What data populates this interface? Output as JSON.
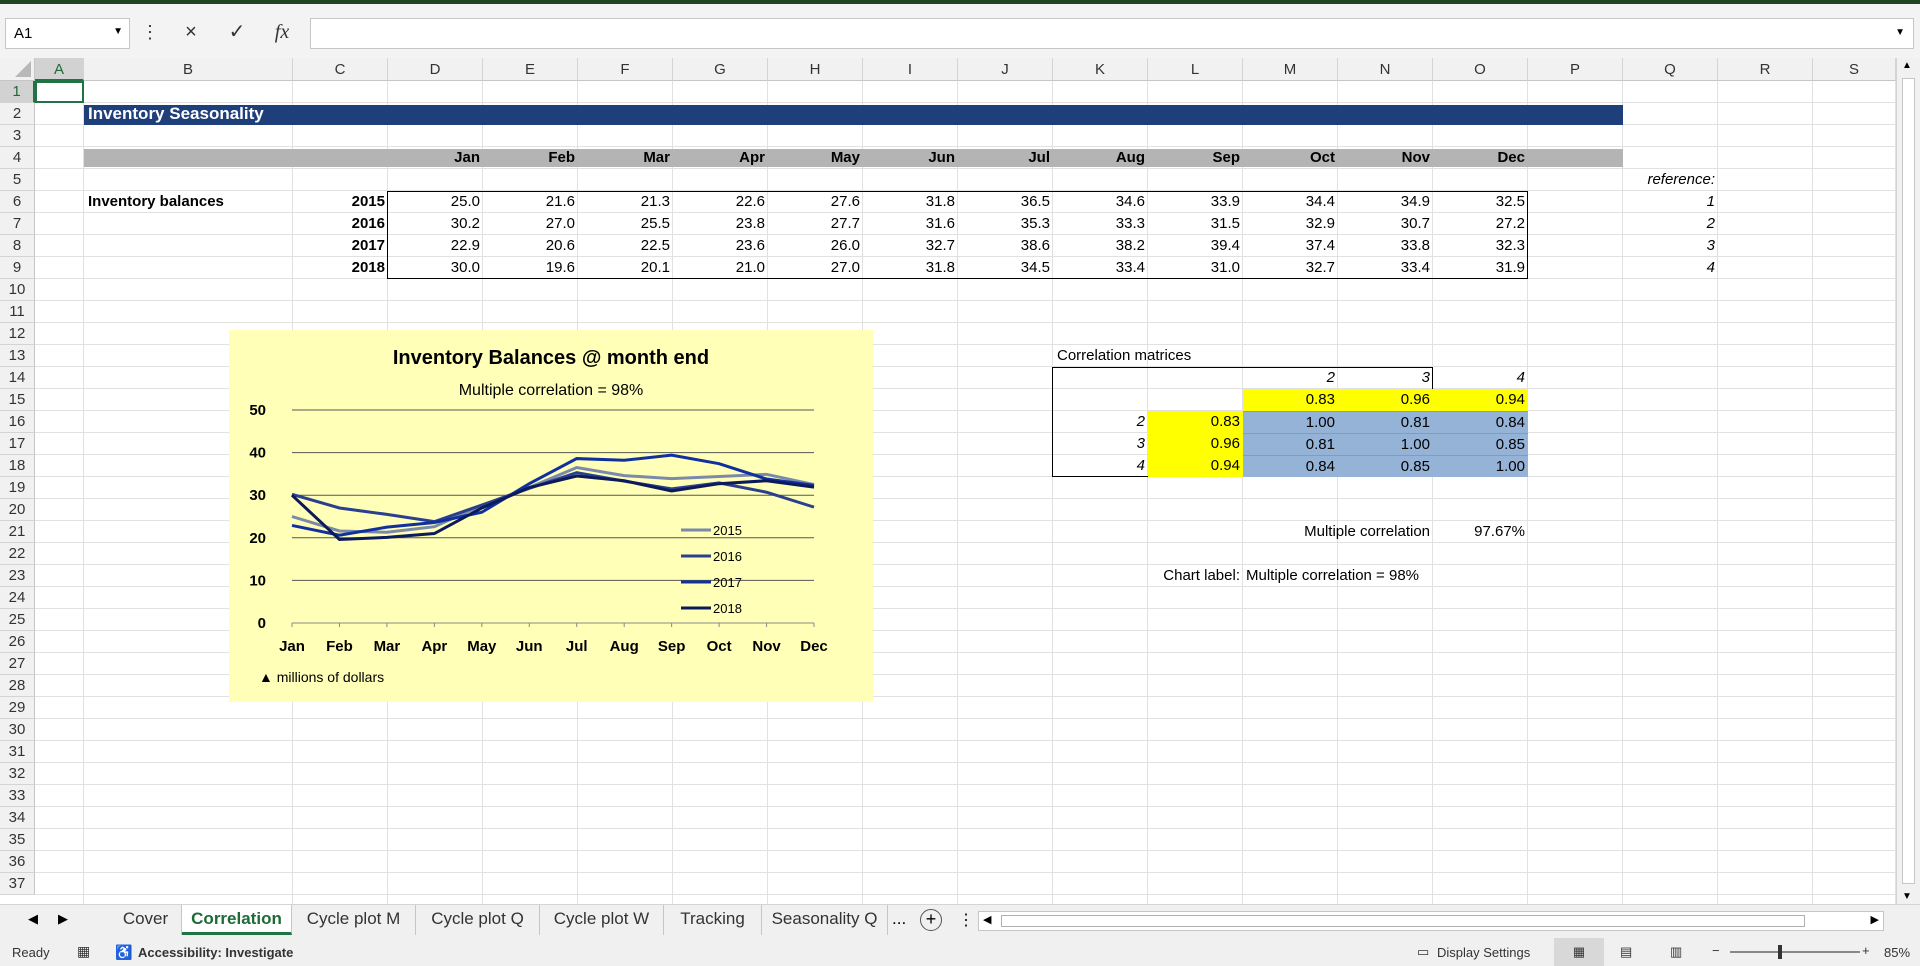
{
  "formula_bar": {
    "name_box": "A1",
    "formula": "",
    "cancel_icon": "×",
    "enter_icon": "✓",
    "fx_icon": "fx"
  },
  "columns": [
    "A",
    "B",
    "C",
    "D",
    "E",
    "F",
    "G",
    "H",
    "I",
    "J",
    "K",
    "L",
    "M",
    "N",
    "O",
    "P",
    "Q",
    "R",
    "S"
  ],
  "rows": [
    "1",
    "2",
    "3",
    "4",
    "5",
    "6",
    "7",
    "8",
    "9",
    "10",
    "11",
    "12",
    "13",
    "14",
    "15",
    "16",
    "17",
    "18",
    "19",
    "20",
    "21",
    "22",
    "23",
    "24",
    "25",
    "26",
    "27",
    "28",
    "29",
    "30",
    "31",
    "32",
    "33",
    "34",
    "35",
    "36",
    "37"
  ],
  "sheet": {
    "title": "Inventory Seasonality",
    "months": [
      "Jan",
      "Feb",
      "Mar",
      "Apr",
      "May",
      "Jun",
      "Jul",
      "Aug",
      "Sep",
      "Oct",
      "Nov",
      "Dec"
    ],
    "reference_label": "reference:",
    "balances_label": "Inventory balances",
    "years": [
      {
        "year": "2015",
        "ref": "1",
        "values": [
          "25.0",
          "21.6",
          "21.3",
          "22.6",
          "27.6",
          "31.8",
          "36.5",
          "34.6",
          "33.9",
          "34.4",
          "34.9",
          "32.5"
        ]
      },
      {
        "year": "2016",
        "ref": "2",
        "values": [
          "30.2",
          "27.0",
          "25.5",
          "23.8",
          "27.7",
          "31.6",
          "35.3",
          "33.3",
          "31.5",
          "32.9",
          "30.7",
          "27.2"
        ]
      },
      {
        "year": "2017",
        "ref": "3",
        "values": [
          "22.9",
          "20.6",
          "22.5",
          "23.6",
          "26.0",
          "32.7",
          "38.6",
          "38.2",
          "39.4",
          "37.4",
          "33.8",
          "32.3"
        ]
      },
      {
        "year": "2018",
        "ref": "4",
        "values": [
          "30.0",
          "19.6",
          "20.1",
          "21.0",
          "27.0",
          "31.8",
          "34.5",
          "33.4",
          "31.0",
          "32.7",
          "33.4",
          "31.9"
        ]
      }
    ],
    "correlation": {
      "title": "Correlation matrices",
      "col_headers": [
        "2",
        "3",
        "4"
      ],
      "top_row": [
        "0.83",
        "0.96",
        "0.94"
      ],
      "rows": [
        {
          "label": "2",
          "side": "0.83",
          "values": [
            "1.00",
            "0.81",
            "0.84"
          ]
        },
        {
          "label": "3",
          "side": "0.96",
          "values": [
            "0.81",
            "1.00",
            "0.85"
          ]
        },
        {
          "label": "4",
          "side": "0.94",
          "values": [
            "0.84",
            "0.85",
            "1.00"
          ]
        }
      ],
      "multiple_label": "Multiple correlation",
      "multiple_value": "97.67%",
      "chart_label_caption": "Chart label:",
      "chart_label_value": "Multiple correlation = 98%"
    }
  },
  "chart_data": {
    "type": "line",
    "title": "Inventory Balances @ month end",
    "subtitle": "Multiple correlation = 98%",
    "note": "▲ millions of dollars",
    "categories": [
      "Jan",
      "Feb",
      "Mar",
      "Apr",
      "May",
      "Jun",
      "Jul",
      "Aug",
      "Sep",
      "Oct",
      "Nov",
      "Dec"
    ],
    "ylim": [
      0,
      50
    ],
    "yticks": [
      0,
      10,
      20,
      30,
      40,
      50
    ],
    "grid": true,
    "legend": "bottom-right",
    "series": [
      {
        "name": "2015",
        "color": "#7a8aa8",
        "values": [
          25.0,
          21.6,
          21.3,
          22.6,
          27.6,
          31.8,
          36.5,
          34.6,
          33.9,
          34.4,
          34.9,
          32.5
        ]
      },
      {
        "name": "2016",
        "color": "#2a3f8f",
        "values": [
          30.2,
          27.0,
          25.5,
          23.8,
          27.7,
          31.6,
          35.3,
          33.3,
          31.5,
          32.9,
          30.7,
          27.2
        ]
      },
      {
        "name": "2017",
        "color": "#1030a0",
        "values": [
          22.9,
          20.6,
          22.5,
          23.6,
          26.0,
          32.7,
          38.6,
          38.2,
          39.4,
          37.4,
          33.8,
          32.3
        ]
      },
      {
        "name": "2018",
        "color": "#0c1a5a",
        "values": [
          30.0,
          19.6,
          20.1,
          21.0,
          27.0,
          31.8,
          34.5,
          33.4,
          31.0,
          32.7,
          33.4,
          31.9
        ]
      }
    ]
  },
  "tabs": [
    "Cover",
    "Correlation",
    "Cycle plot M",
    "Cycle plot Q",
    "Cycle plot W",
    "Tracking",
    "Seasonality Q"
  ],
  "tab_more": "...",
  "status": {
    "ready": "Ready",
    "accessibility": "Accessibility: Investigate",
    "display_settings": "Display Settings",
    "zoom": "85%"
  },
  "colors": {
    "title_band": "#1f3f7a",
    "header_band": "#b4b4b4",
    "chart_bg": "#ffffb8",
    "yellow": "#ffff00",
    "blue_cell": "#95b3d7"
  }
}
